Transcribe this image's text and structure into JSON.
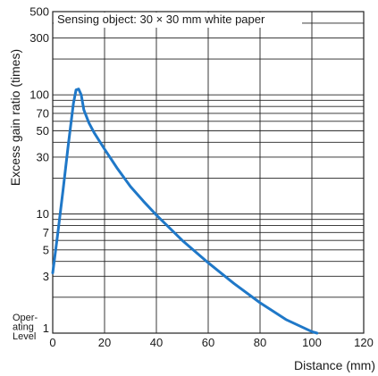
{
  "chart_data": {
    "type": "line",
    "xlabel": "Distance (mm)",
    "ylabel": "Excess gain ratio (times)",
    "annotation": "Sensing object: 30 × 30 mm white paper",
    "y_scale": "log",
    "xlim": [
      0,
      120
    ],
    "ylim": [
      1,
      500
    ],
    "x_ticks": [
      0,
      20,
      40,
      60,
      80,
      100,
      120
    ],
    "x_tick_labels": [
      "0",
      "20",
      "40",
      "60",
      "80",
      "100",
      "120"
    ],
    "y_ticks": [
      3,
      5,
      7,
      10,
      30,
      50,
      70,
      100,
      300,
      500
    ],
    "y_tick_labels": [
      "3",
      "5",
      "7",
      "10",
      "30",
      "50",
      "70",
      "100",
      "300",
      "500"
    ],
    "y_min_label": {
      "prefix_lines": [
        "Oper-",
        "ating",
        "Level"
      ],
      "value": "1"
    },
    "grid": true,
    "series": [
      {
        "color": "#1f78c8",
        "x": [
          0,
          2,
          4,
          6,
          8,
          9,
          10,
          11,
          12,
          14,
          16,
          20,
          25,
          30,
          35,
          40,
          50,
          60,
          70,
          80,
          90,
          100,
          102
        ],
        "y": [
          3.2,
          7,
          16,
          38,
          85,
          110,
          112,
          100,
          75,
          58,
          48,
          35,
          24,
          17,
          12.8,
          9.8,
          6,
          3.9,
          2.6,
          1.8,
          1.3,
          1.03,
          1
        ]
      }
    ]
  }
}
